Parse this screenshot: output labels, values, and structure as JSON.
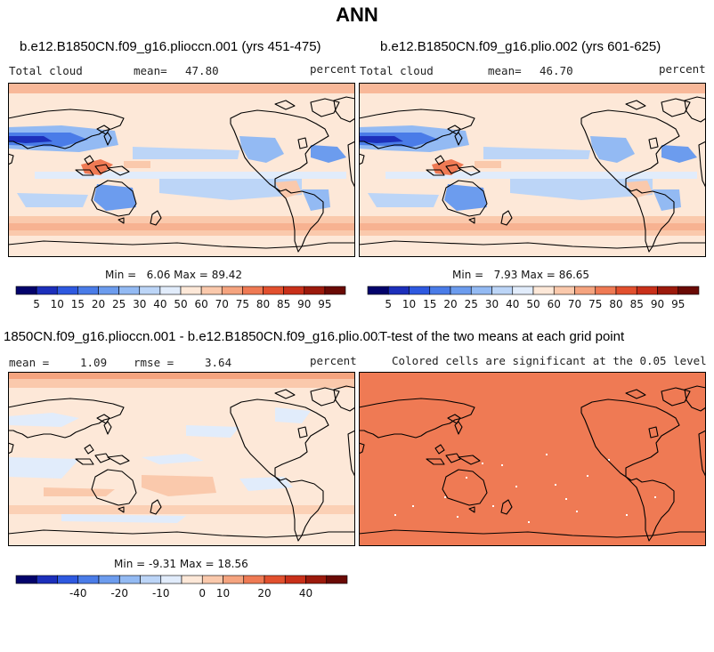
{
  "title": "ANN",
  "panels": [
    {
      "id": "p1",
      "title": "b.e12.B1850CN.f09_g16.plioccn.001 (yrs 451-475)",
      "left_label": "Total cloud",
      "mean_label": "mean=",
      "mean_value": "47.80",
      "units": "percent",
      "min_label": "Min =",
      "min_value": "6.06",
      "max_label": "Max =",
      "max_value": "89.42"
    },
    {
      "id": "p2",
      "title": "b.e12.B1850CN.f09_g16.plio.002 (yrs 601-625)",
      "left_label": "Total cloud",
      "mean_label": "mean=",
      "mean_value": "46.70",
      "units": "percent",
      "min_label": "Min =",
      "min_value": "7.93",
      "max_label": "Max =",
      "max_value": "86.65"
    },
    {
      "id": "p3",
      "title": "1850CN.f09_g16.plioccn.001 - b.e12.B1850CN.f09_g16.plio.002",
      "left_label": "mean =",
      "mean_value": "1.09",
      "rmse_label": "rmse =",
      "rmse_value": "3.64",
      "units": "percent",
      "min_label": "Min =",
      "min_value": "-9.31",
      "max_label": "Max =",
      "max_value": "18.56"
    },
    {
      "id": "p4",
      "title": "T-test of the two means at each grid point",
      "subtitle": "Colored cells are significant at the 0.05 level"
    }
  ],
  "colorbars": {
    "abs": {
      "labels": [
        "5",
        "10",
        "15",
        "20",
        "25",
        "30",
        "40",
        "50",
        "60",
        "70",
        "75",
        "80",
        "85",
        "90",
        "95"
      ],
      "colors": [
        "#03036b",
        "#1c2fbb",
        "#2e59e0",
        "#4a7ce8",
        "#6c9cee",
        "#93baf3",
        "#bcd5f7",
        "#e1ecfb",
        "#fde8d8",
        "#fac9ac",
        "#f5a47f",
        "#ef7a54",
        "#e2502e",
        "#c9301a",
        "#9c1a0c",
        "#6a0a05"
      ]
    },
    "diff": {
      "labels": [
        "-40",
        "-20",
        "-10",
        "0",
        "10",
        "20",
        "40"
      ],
      "colors": [
        "#03036b",
        "#1c2fbb",
        "#2e59e0",
        "#4a7ce8",
        "#6c9cee",
        "#93baf3",
        "#bcd5f7",
        "#e1ecfb",
        "#fde8d8",
        "#fac9ac",
        "#f5a47f",
        "#ef7a54",
        "#e2502e",
        "#c9301a",
        "#9c1a0c",
        "#6a0a05"
      ]
    }
  },
  "chart_data": [
    {
      "type": "heatmap",
      "title": "b.e12.B1850CN.f09_g16.plioccn.001 (yrs 451-475)",
      "variable": "Total cloud",
      "units": "percent",
      "mean": 47.8,
      "min": 6.06,
      "max": 89.42,
      "levels": [
        5,
        10,
        15,
        20,
        25,
        30,
        40,
        50,
        60,
        70,
        75,
        80,
        85,
        90,
        95
      ]
    },
    {
      "type": "heatmap",
      "title": "b.e12.B1850CN.f09_g16.plio.002 (yrs 601-625)",
      "variable": "Total cloud",
      "units": "percent",
      "mean": 46.7,
      "min": 7.93,
      "max": 86.65,
      "levels": [
        5,
        10,
        15,
        20,
        25,
        30,
        40,
        50,
        60,
        70,
        75,
        80,
        85,
        90,
        95
      ]
    },
    {
      "type": "heatmap",
      "title": "1850CN.f09_g16.plioccn.001 - b.e12.B1850CN.f09_g16.plio.002",
      "units": "percent",
      "mean": 1.09,
      "rmse": 3.64,
      "min": -9.31,
      "max": 18.56,
      "levels": [
        -40,
        -20,
        -10,
        0,
        10,
        20,
        40
      ]
    },
    {
      "type": "heatmap",
      "title": "T-test of the two means at each grid point",
      "subtitle": "Colored cells are significant at the 0.05 level",
      "significance_level": 0.05
    }
  ]
}
